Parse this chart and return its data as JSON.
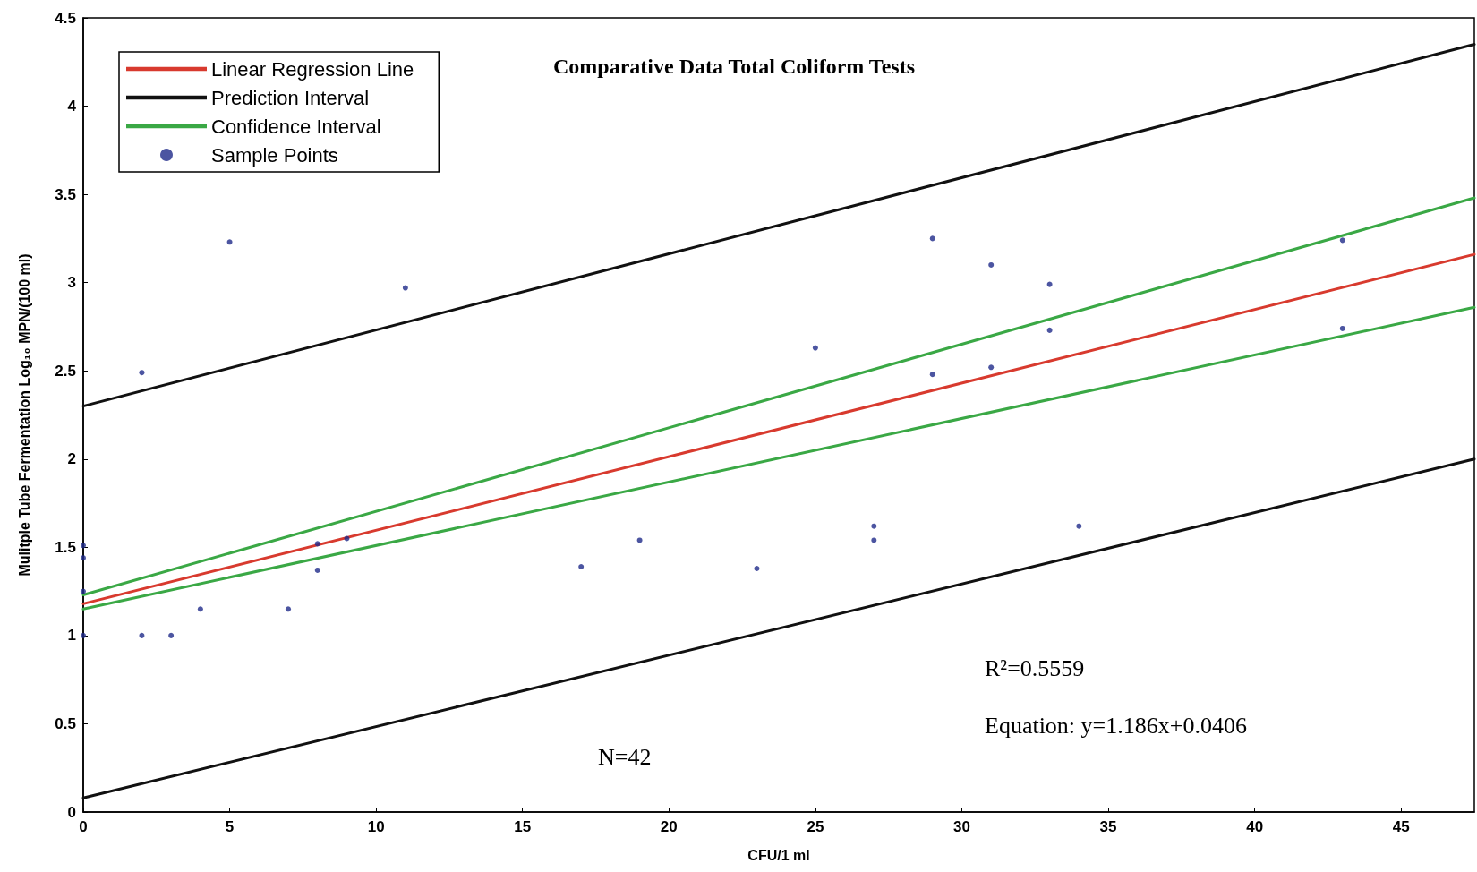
{
  "chart_data": {
    "type": "scatter",
    "title": "Comparative Data Total Coliform Tests",
    "xlabel": "CFU/1 ml",
    "ylabel": "Mulitple Tube Fermentation Log₁₀ MPN/(100 ml)",
    "xlim": [
      0,
      47.5
    ],
    "xticks": [
      0,
      5,
      10,
      15,
      20,
      25,
      30,
      35,
      40,
      45
    ],
    "ylim": [
      0,
      4.5
    ],
    "yticks": [
      0,
      0.5,
      1,
      1.5,
      2,
      2.5,
      3,
      3.5,
      4,
      4.5
    ],
    "grid": false,
    "legend": "top left",
    "annotations": [
      "R²=0.5559",
      "Equation: y=1.186x+0.0406",
      "N=42"
    ],
    "series": [
      {
        "name": "Linear Regression Line",
        "type": "line",
        "color": "#d83a2e",
        "marker": "none",
        "x": [
          0,
          47.5
        ],
        "values": [
          1.18,
          3.16
        ]
      },
      {
        "name": "Prediction Interval",
        "type": "line",
        "color": "#111111",
        "marker": "none",
        "x": [
          0,
          47.5
        ],
        "values": [
          2.3,
          4.35
        ]
      },
      {
        "type": "line",
        "color": "#111111",
        "marker": "none",
        "x": [
          0,
          47.5
        ],
        "values": [
          0.08,
          2.0
        ]
      },
      {
        "name": "Confidence Interval",
        "type": "line",
        "color": "#3aa845",
        "marker": "none",
        "x": [
          0,
          47.5
        ],
        "values": [
          1.23,
          3.48
        ]
      },
      {
        "type": "line",
        "color": "#3aa845",
        "marker": "none",
        "x": [
          0,
          47.5
        ],
        "values": [
          1.15,
          2.86
        ]
      },
      {
        "name": "Sample Points",
        "type": "scatter",
        "color": "#1f2a8a",
        "marker": "circle",
        "x": [
          0,
          0,
          0,
          0,
          2,
          2,
          3,
          4,
          5,
          7,
          8,
          8,
          9,
          11,
          17,
          19,
          23,
          25,
          27,
          27,
          29,
          29,
          31,
          31,
          33,
          33,
          34,
          43,
          43
        ],
        "values": [
          1.51,
          1.44,
          1.25,
          1.0,
          2.49,
          1.0,
          1.0,
          1.15,
          3.23,
          1.15,
          1.52,
          1.37,
          1.55,
          2.97,
          1.39,
          1.54,
          1.38,
          2.63,
          1.62,
          1.54,
          3.25,
          2.48,
          3.1,
          2.52,
          2.99,
          2.73,
          1.62,
          3.24,
          2.74
        ]
      }
    ]
  }
}
